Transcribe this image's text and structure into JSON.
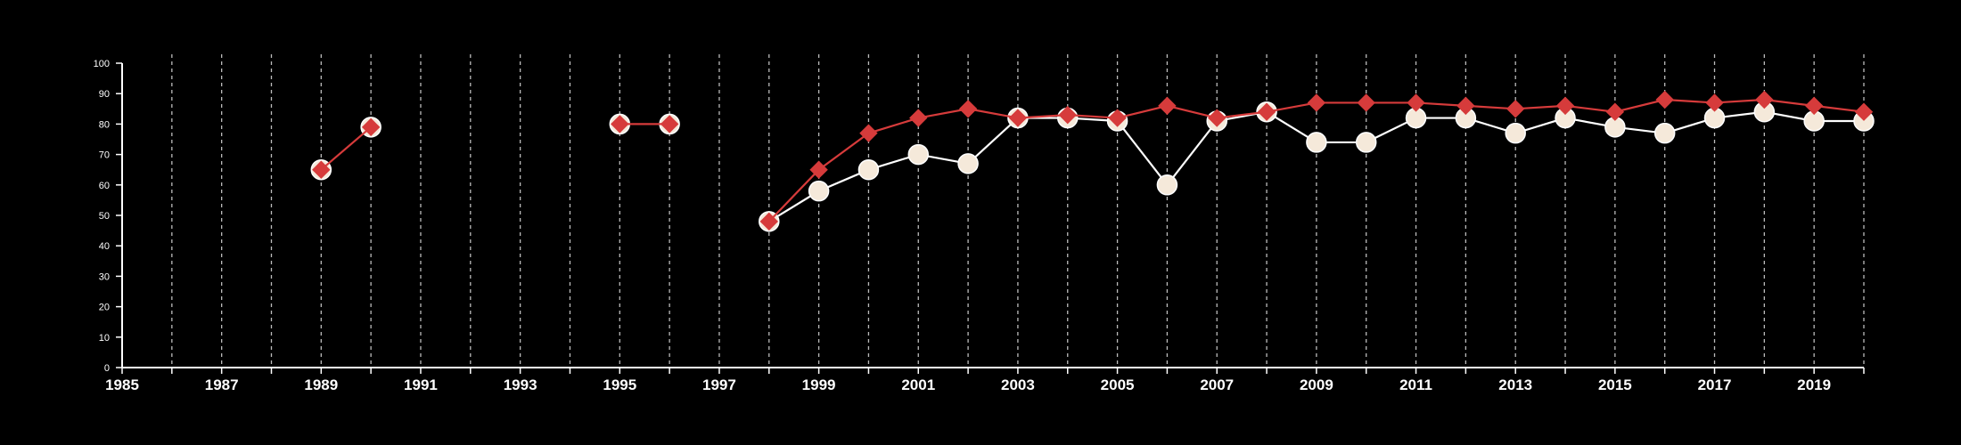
{
  "chart_data": {
    "type": "line",
    "xlim": [
      1985,
      2020
    ],
    "ylim": [
      0,
      100
    ],
    "x_ticks": [
      1985,
      1987,
      1989,
      1991,
      1993,
      1995,
      1997,
      1999,
      2001,
      2003,
      2005,
      2007,
      2009,
      2011,
      2013,
      2015,
      2017,
      2019
    ],
    "x_tick_labels": [
      "1985",
      "1987",
      "1989",
      "1991",
      "1993",
      "1995",
      "1997",
      "1999",
      "2001",
      "2003",
      "2005",
      "2007",
      "2009",
      "2011",
      "2013",
      "2015",
      "2017",
      "2019"
    ],
    "y_ticks": [
      0,
      10,
      20,
      30,
      40,
      50,
      60,
      70,
      80,
      90,
      100
    ],
    "y_tick_labels": [
      "0",
      "10",
      "20",
      "30",
      "40",
      "50",
      "60",
      "70",
      "80",
      "90",
      "100"
    ],
    "grid": "vertical-dashed",
    "background": "#000000",
    "series": [
      {
        "marker": "circle",
        "color": "#ffffff",
        "fill": "#f5e9da",
        "points": [
          [
            1998,
            48
          ],
          [
            1999,
            58
          ],
          [
            2000,
            65
          ],
          [
            2001,
            70
          ],
          [
            2002,
            67
          ],
          [
            2003,
            82
          ],
          [
            2004,
            82
          ],
          [
            2005,
            81
          ],
          [
            2006,
            60
          ],
          [
            2007,
            81
          ],
          [
            2008,
            84
          ],
          [
            2009,
            74
          ],
          [
            2010,
            74
          ],
          [
            2011,
            82
          ],
          [
            2012,
            82
          ],
          [
            2013,
            77
          ],
          [
            2014,
            82
          ],
          [
            2015,
            79
          ],
          [
            2016,
            77
          ],
          [
            2017,
            82
          ],
          [
            2018,
            84
          ],
          [
            2019,
            81
          ],
          [
            2020,
            81
          ]
        ]
      },
      {
        "marker": "diamond",
        "color": "#d63b3b",
        "fill": "#d63b3b",
        "points": [
          [
            1989,
            65
          ],
          [
            1990,
            79
          ],
          null,
          [
            1995,
            80
          ],
          [
            1996,
            80
          ],
          null,
          [
            1998,
            48
          ],
          [
            1999,
            65
          ],
          [
            2000,
            77
          ],
          [
            2001,
            82
          ],
          [
            2002,
            85
          ],
          [
            2003,
            82
          ],
          [
            2004,
            83
          ],
          [
            2005,
            82
          ],
          [
            2006,
            86
          ],
          [
            2007,
            82
          ],
          [
            2008,
            84
          ],
          [
            2009,
            87
          ],
          [
            2010,
            87
          ],
          [
            2011,
            87
          ],
          [
            2012,
            86
          ],
          [
            2013,
            85
          ],
          [
            2014,
            86
          ],
          [
            2015,
            84
          ],
          [
            2016,
            88
          ],
          [
            2017,
            87
          ],
          [
            2018,
            88
          ],
          [
            2019,
            86
          ],
          [
            2020,
            84
          ]
        ]
      }
    ],
    "segment_circles": [
      [
        1989,
        65
      ],
      [
        1990,
        79
      ],
      [
        1995,
        80
      ],
      [
        1996,
        80
      ]
    ]
  }
}
